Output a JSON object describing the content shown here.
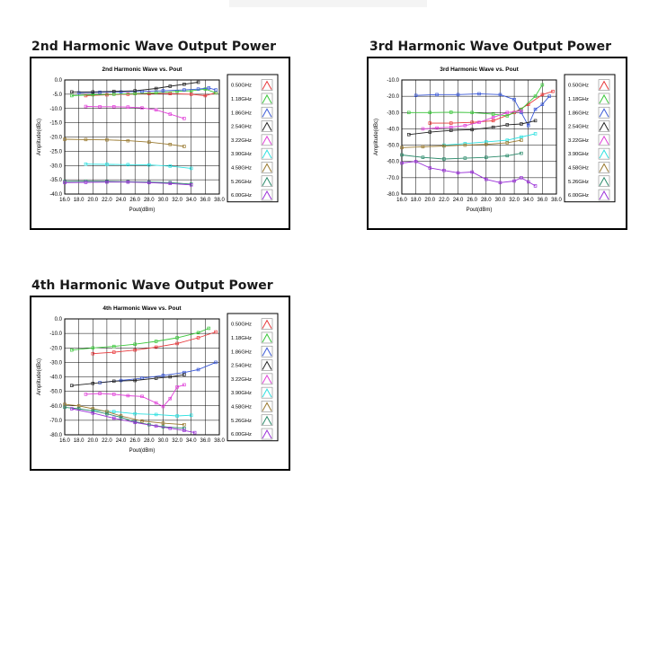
{
  "page": {
    "section_titles": [
      "2nd Harmonic Wave Output Power",
      "3rd Harmonic Wave Output Power",
      "4th Harmonic Wave Output Power"
    ]
  },
  "legend_labels": [
    "0.50GHz",
    "1.18GHz",
    "1.86GHz",
    "2.54GHz",
    "3.22GHz",
    "3.90GHz",
    "4.58GHz",
    "5.26GHz",
    "6.00GHz"
  ],
  "colors": {
    "0.50GHz": "#e8383b",
    "1.18GHz": "#3cc83c",
    "1.86GHz": "#3c5ad8",
    "2.54GHz": "#222222",
    "3.22GHz": "#e040d8",
    "3.90GHz": "#2ee0e0",
    "4.58GHz": "#9a7a30",
    "5.26GHz": "#2a8a6a",
    "6.00GHz": "#9a30d8"
  },
  "chart_data": [
    {
      "type": "line",
      "title": "2nd Harmonic Wave vs. Pout",
      "xlabel": "Pout(dBm)",
      "ylabel": "Amplitude(dBc)",
      "xlim": [
        16.0,
        38.0
      ],
      "ylim": [
        -40.0,
        0.0
      ],
      "x_ticks": [
        "16.0",
        "18.0",
        "20.0",
        "22.0",
        "24.0",
        "26.0",
        "28.0",
        "30.0",
        "32.0",
        "34.0",
        "36.0",
        "38.0"
      ],
      "y_ticks": [
        "0.0",
        "-5.0",
        "-10.0",
        "-15.0",
        "-20.0",
        "-25.0",
        "-30.0",
        "-35.0",
        "-40.0"
      ],
      "grid": true,
      "legend": "right",
      "series": [
        {
          "name": "0.50GHz",
          "x": [
            19,
            22,
            25,
            28,
            31,
            34,
            36,
            37.5
          ],
          "y": [
            -5.5,
            -5.2,
            -5.0,
            -4.8,
            -4.8,
            -5.0,
            -5.5,
            -4.5
          ]
        },
        {
          "name": "1.18GHz",
          "x": [
            17,
            20,
            23,
            26,
            29,
            32,
            34,
            36,
            37.5
          ],
          "y": [
            -5.5,
            -5.2,
            -5.0,
            -4.8,
            -4.5,
            -4.0,
            -3.8,
            -3.2,
            -4.5
          ]
        },
        {
          "name": "1.86GHz",
          "x": [
            18,
            21,
            24,
            27,
            30,
            33,
            35,
            36.5,
            37.5
          ],
          "y": [
            -4.5,
            -4.3,
            -4.2,
            -4.0,
            -3.8,
            -3.5,
            -3.2,
            -2.8,
            -3.5
          ]
        },
        {
          "name": "2.54GHz",
          "x": [
            17,
            20,
            23,
            26,
            29,
            31,
            33,
            35
          ],
          "y": [
            -4.2,
            -4.2,
            -4.0,
            -3.8,
            -3.0,
            -2.2,
            -1.5,
            -0.8
          ]
        },
        {
          "name": "3.22GHz",
          "x": [
            19,
            21,
            23,
            25,
            27,
            29,
            31,
            33
          ],
          "y": [
            -9.3,
            -9.4,
            -9.4,
            -9.5,
            -9.8,
            -10.5,
            -12.0,
            -13.5
          ]
        },
        {
          "name": "3.90GHz",
          "x": [
            19,
            22,
            25,
            28,
            31,
            34
          ],
          "y": [
            -29.5,
            -29.6,
            -29.7,
            -29.8,
            -30.2,
            -31.0
          ]
        },
        {
          "name": "4.58GHz",
          "x": [
            16,
            19,
            22,
            25,
            28,
            31,
            33
          ],
          "y": [
            -20.8,
            -20.9,
            -21.0,
            -21.3,
            -21.8,
            -22.6,
            -23.3
          ]
        },
        {
          "name": "5.26GHz",
          "x": [
            16,
            19,
            22,
            25,
            28,
            31,
            34
          ],
          "y": [
            -35.6,
            -35.5,
            -35.6,
            -35.7,
            -35.8,
            -36.0,
            -36.5
          ]
        },
        {
          "name": "6.00GHz",
          "x": [
            16,
            19,
            22,
            25,
            28,
            31,
            34
          ],
          "y": [
            -36.0,
            -35.9,
            -35.8,
            -35.8,
            -36.0,
            -36.3,
            -36.8
          ]
        }
      ]
    },
    {
      "type": "line",
      "title": "3rd Harmonic Wave vs. Pout",
      "xlabel": "Pout(dBm)",
      "ylabel": "Amplitude(dBc)",
      "xlim": [
        16.0,
        38.0
      ],
      "ylim": [
        -80.0,
        -10.0
      ],
      "x_ticks": [
        "16.0",
        "18.0",
        "20.0",
        "22.0",
        "24.0",
        "26.0",
        "28.0",
        "30.0",
        "32.0",
        "34.0",
        "36.0",
        "38.0"
      ],
      "y_ticks": [
        "-10.0",
        "-20.0",
        "-30.0",
        "-40.0",
        "-50.0",
        "-60.0",
        "-70.0",
        "-80.0"
      ],
      "grid": true,
      "legend": "right",
      "series": [
        {
          "name": "0.50GHz",
          "x": [
            20,
            23,
            26,
            29,
            32,
            34,
            36,
            37.5
          ],
          "y": [
            -36.5,
            -36.5,
            -36.0,
            -35.0,
            -30.0,
            -25.0,
            -19.0,
            -17.0
          ]
        },
        {
          "name": "1.18GHz",
          "x": [
            17,
            20,
            23,
            26,
            29,
            31,
            33,
            35,
            36
          ],
          "y": [
            -30.0,
            -30.0,
            -29.8,
            -30.0,
            -31.0,
            -32.0,
            -28.0,
            -20.0,
            -13.0
          ]
        },
        {
          "name": "1.86GHz",
          "x": [
            18,
            21,
            24,
            27,
            30,
            32,
            33,
            34,
            35,
            36,
            37
          ],
          "y": [
            -19.5,
            -19.0,
            -19.0,
            -18.5,
            -19.0,
            -22.0,
            -30.0,
            -38.0,
            -28.0,
            -25.0,
            -20.0
          ]
        },
        {
          "name": "2.54GHz",
          "x": [
            17,
            20,
            23,
            26,
            29,
            31,
            33,
            35
          ],
          "y": [
            -43.5,
            -42.0,
            -41.0,
            -40.5,
            -39.0,
            -37.5,
            -37.0,
            -35.0
          ]
        },
        {
          "name": "3.22GHz",
          "x": [
            19,
            21,
            23,
            25,
            27,
            29,
            31,
            33
          ],
          "y": [
            -40.0,
            -39.5,
            -39.0,
            -38.0,
            -36.0,
            -33.0,
            -30.0,
            -29.0
          ]
        },
        {
          "name": "3.90GHz",
          "x": [
            22,
            25,
            28,
            31,
            33,
            35
          ],
          "y": [
            -50.0,
            -49.0,
            -48.0,
            -47.0,
            -45.0,
            -43.0
          ]
        },
        {
          "name": "4.58GHz",
          "x": [
            16,
            19,
            22,
            25,
            28,
            31,
            33
          ],
          "y": [
            -51.5,
            -51.0,
            -50.5,
            -50.0,
            -49.5,
            -48.5,
            -47.0
          ]
        },
        {
          "name": "5.26GHz",
          "x": [
            16,
            19,
            22,
            25,
            28,
            31,
            33
          ],
          "y": [
            -56.0,
            -57.5,
            -58.5,
            -58.0,
            -57.5,
            -56.5,
            -55.0
          ]
        },
        {
          "name": "6.00GHz",
          "x": [
            16,
            18,
            20,
            22,
            24,
            26,
            28,
            30,
            32,
            33,
            34,
            35
          ],
          "y": [
            -61.0,
            -60.0,
            -64.0,
            -65.5,
            -67.0,
            -66.5,
            -71.0,
            -73.0,
            -72.0,
            -70.0,
            -72.5,
            -75.0
          ]
        }
      ]
    },
    {
      "type": "line",
      "title": "4th Harmonic Wave vs. Pout",
      "xlabel": "Pout(dBm)",
      "ylabel": "Amplitude(dBc)",
      "xlim": [
        16.0,
        38.0
      ],
      "ylim": [
        -80.0,
        0.0
      ],
      "x_ticks": [
        "16.0",
        "18.0",
        "20.0",
        "22.0",
        "24.0",
        "26.0",
        "28.0",
        "30.0",
        "32.0",
        "34.0",
        "36.0",
        "38.0"
      ],
      "y_ticks": [
        "0.0",
        "-10.0",
        "-20.0",
        "-30.0",
        "-40.0",
        "-50.0",
        "-60.0",
        "-70.0",
        "-80.0"
      ],
      "grid": true,
      "legend": "right",
      "series": [
        {
          "name": "0.50GHz",
          "x": [
            20,
            23,
            26,
            29,
            32,
            35,
            37.5
          ],
          "y": [
            -24.0,
            -23.0,
            -21.5,
            -19.5,
            -17.0,
            -13.0,
            -9.0
          ]
        },
        {
          "name": "1.18GHz",
          "x": [
            17,
            20,
            23,
            26,
            29,
            32,
            35,
            36.5
          ],
          "y": [
            -21.5,
            -20.0,
            -19.0,
            -17.5,
            -15.5,
            -13.0,
            -9.5,
            -6.5
          ]
        },
        {
          "name": "1.86GHz",
          "x": [
            21,
            24,
            27,
            30,
            33,
            35,
            37.5
          ],
          "y": [
            -44.0,
            -42.5,
            -41.0,
            -39.0,
            -37.0,
            -35.0,
            -30.0
          ]
        },
        {
          "name": "2.54GHz",
          "x": [
            17,
            20,
            23,
            26,
            29,
            31,
            33
          ],
          "y": [
            -46.0,
            -44.5,
            -43.0,
            -42.5,
            -41.0,
            -40.0,
            -38.5
          ]
        },
        {
          "name": "3.22GHz",
          "x": [
            19,
            21,
            23,
            25,
            27,
            29,
            30,
            31,
            32,
            33
          ],
          "y": [
            -52.0,
            -51.5,
            -52.0,
            -53.0,
            -53.5,
            -58.0,
            -60.5,
            -55.0,
            -47.0,
            -45.5
          ]
        },
        {
          "name": "3.90GHz",
          "x": [
            20,
            23,
            26,
            29,
            32,
            34
          ],
          "y": [
            -63.0,
            -64.0,
            -65.5,
            -66.0,
            -67.0,
            -66.5
          ]
        },
        {
          "name": "4.58GHz",
          "x": [
            16,
            18,
            20,
            22,
            24,
            27,
            30,
            33
          ],
          "y": [
            -59.0,
            -60.0,
            -62.0,
            -64.0,
            -67.0,
            -70.5,
            -72.0,
            -73.0
          ]
        },
        {
          "name": "5.26GHz",
          "x": [
            16,
            18,
            20,
            22,
            24,
            26,
            28,
            30,
            33
          ],
          "y": [
            -61.0,
            -62.0,
            -63.5,
            -65.5,
            -68.0,
            -71.0,
            -73.0,
            -74.5,
            -75.5
          ]
        },
        {
          "name": "6.00GHz",
          "x": [
            17,
            20,
            23,
            26,
            29,
            31,
            33,
            34.5
          ],
          "y": [
            -62.0,
            -65.0,
            -68.5,
            -71.5,
            -74.0,
            -75.5,
            -77.0,
            -78.5
          ]
        }
      ]
    }
  ]
}
